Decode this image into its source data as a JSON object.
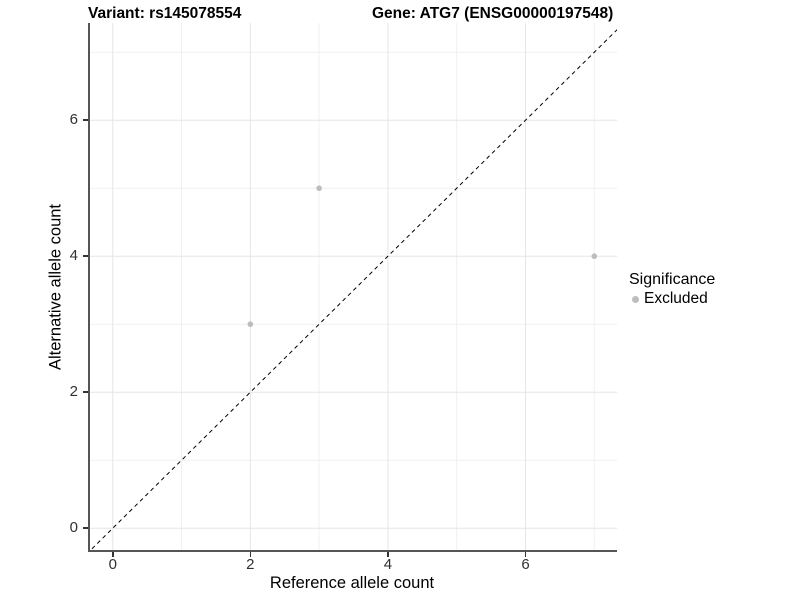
{
  "chart_data": {
    "type": "scatter",
    "title_left": "Variant: rs145078554",
    "title_right": "Gene: ATG7 (ENSG00000197548)",
    "xlabel": "Reference allele count",
    "ylabel": "Alternative allele count",
    "xlim": [
      -0.36,
      7.33
    ],
    "ylim": [
      -0.35,
      7.43
    ],
    "x_major_ticks": [
      0,
      2,
      4,
      6
    ],
    "y_major_ticks": [
      0,
      2,
      4,
      6
    ],
    "x_minor_ticks": [
      1,
      3,
      5,
      7
    ],
    "y_minor_ticks": [
      1,
      3,
      5,
      7
    ],
    "grid": true,
    "reference_line": {
      "type": "identity",
      "style": "dashed",
      "color": "#000000"
    },
    "series": [
      {
        "name": "Excluded",
        "color": "#bdbdbd",
        "points": [
          {
            "x": 2,
            "y": 3
          },
          {
            "x": 3,
            "y": 5
          },
          {
            "x": 7,
            "y": 4
          }
        ]
      }
    ],
    "legend": {
      "title": "Significance",
      "position": "right",
      "items": [
        {
          "label": "Excluded",
          "color": "#bdbdbd"
        }
      ]
    },
    "colors": {
      "grid_major": "#e5e5e5",
      "grid_minor": "#f0f0f0",
      "axis_line": "#555555",
      "tick_mark": "#333333",
      "tick_text": "#303030"
    }
  }
}
